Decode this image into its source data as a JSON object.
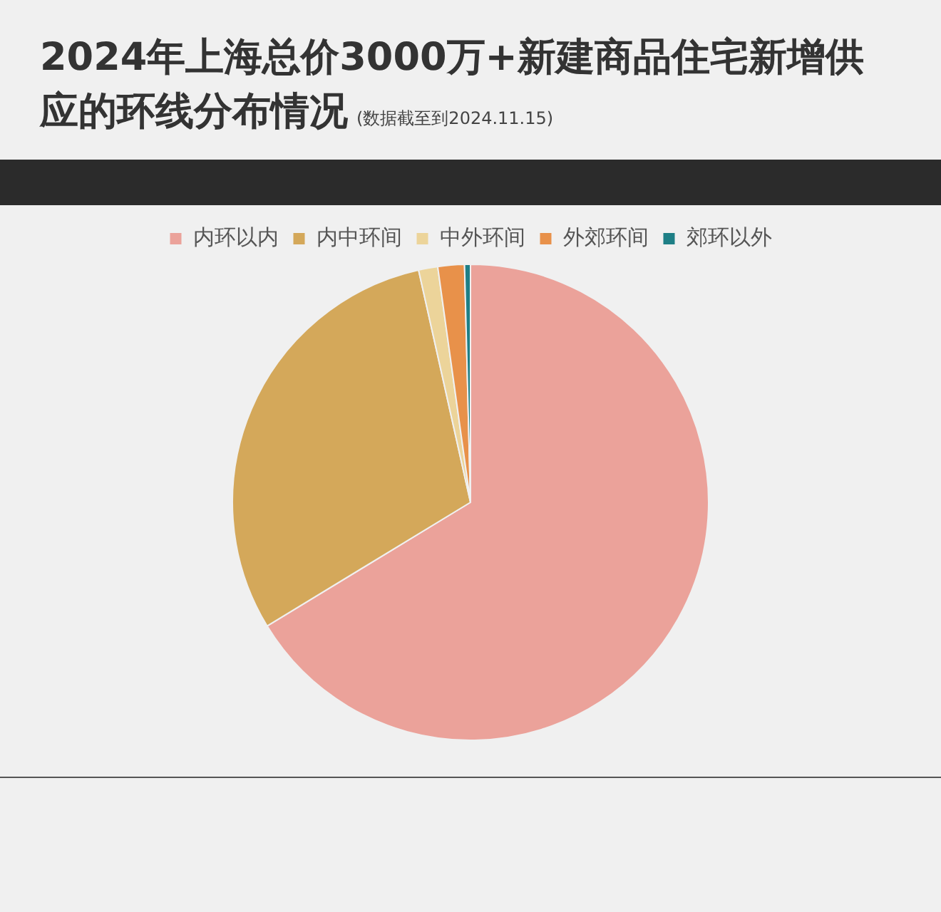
{
  "chart_data": {
    "type": "pie",
    "title": "2024年上海总价3000万+新建商品住宅新增供应的环线分布情况",
    "subtitle": "(数据截至到2024.11.15)",
    "categories": [
      "内环以内",
      "内中环间",
      "中外环间",
      "外郊环间",
      "郊环以外"
    ],
    "values": [
      66.3,
      30.2,
      1.3,
      1.8,
      0.4
    ],
    "colors": [
      "#eba29a",
      "#d4a85a",
      "#ecd49a",
      "#e8914a",
      "#1e7f86"
    ],
    "legend": "top"
  }
}
